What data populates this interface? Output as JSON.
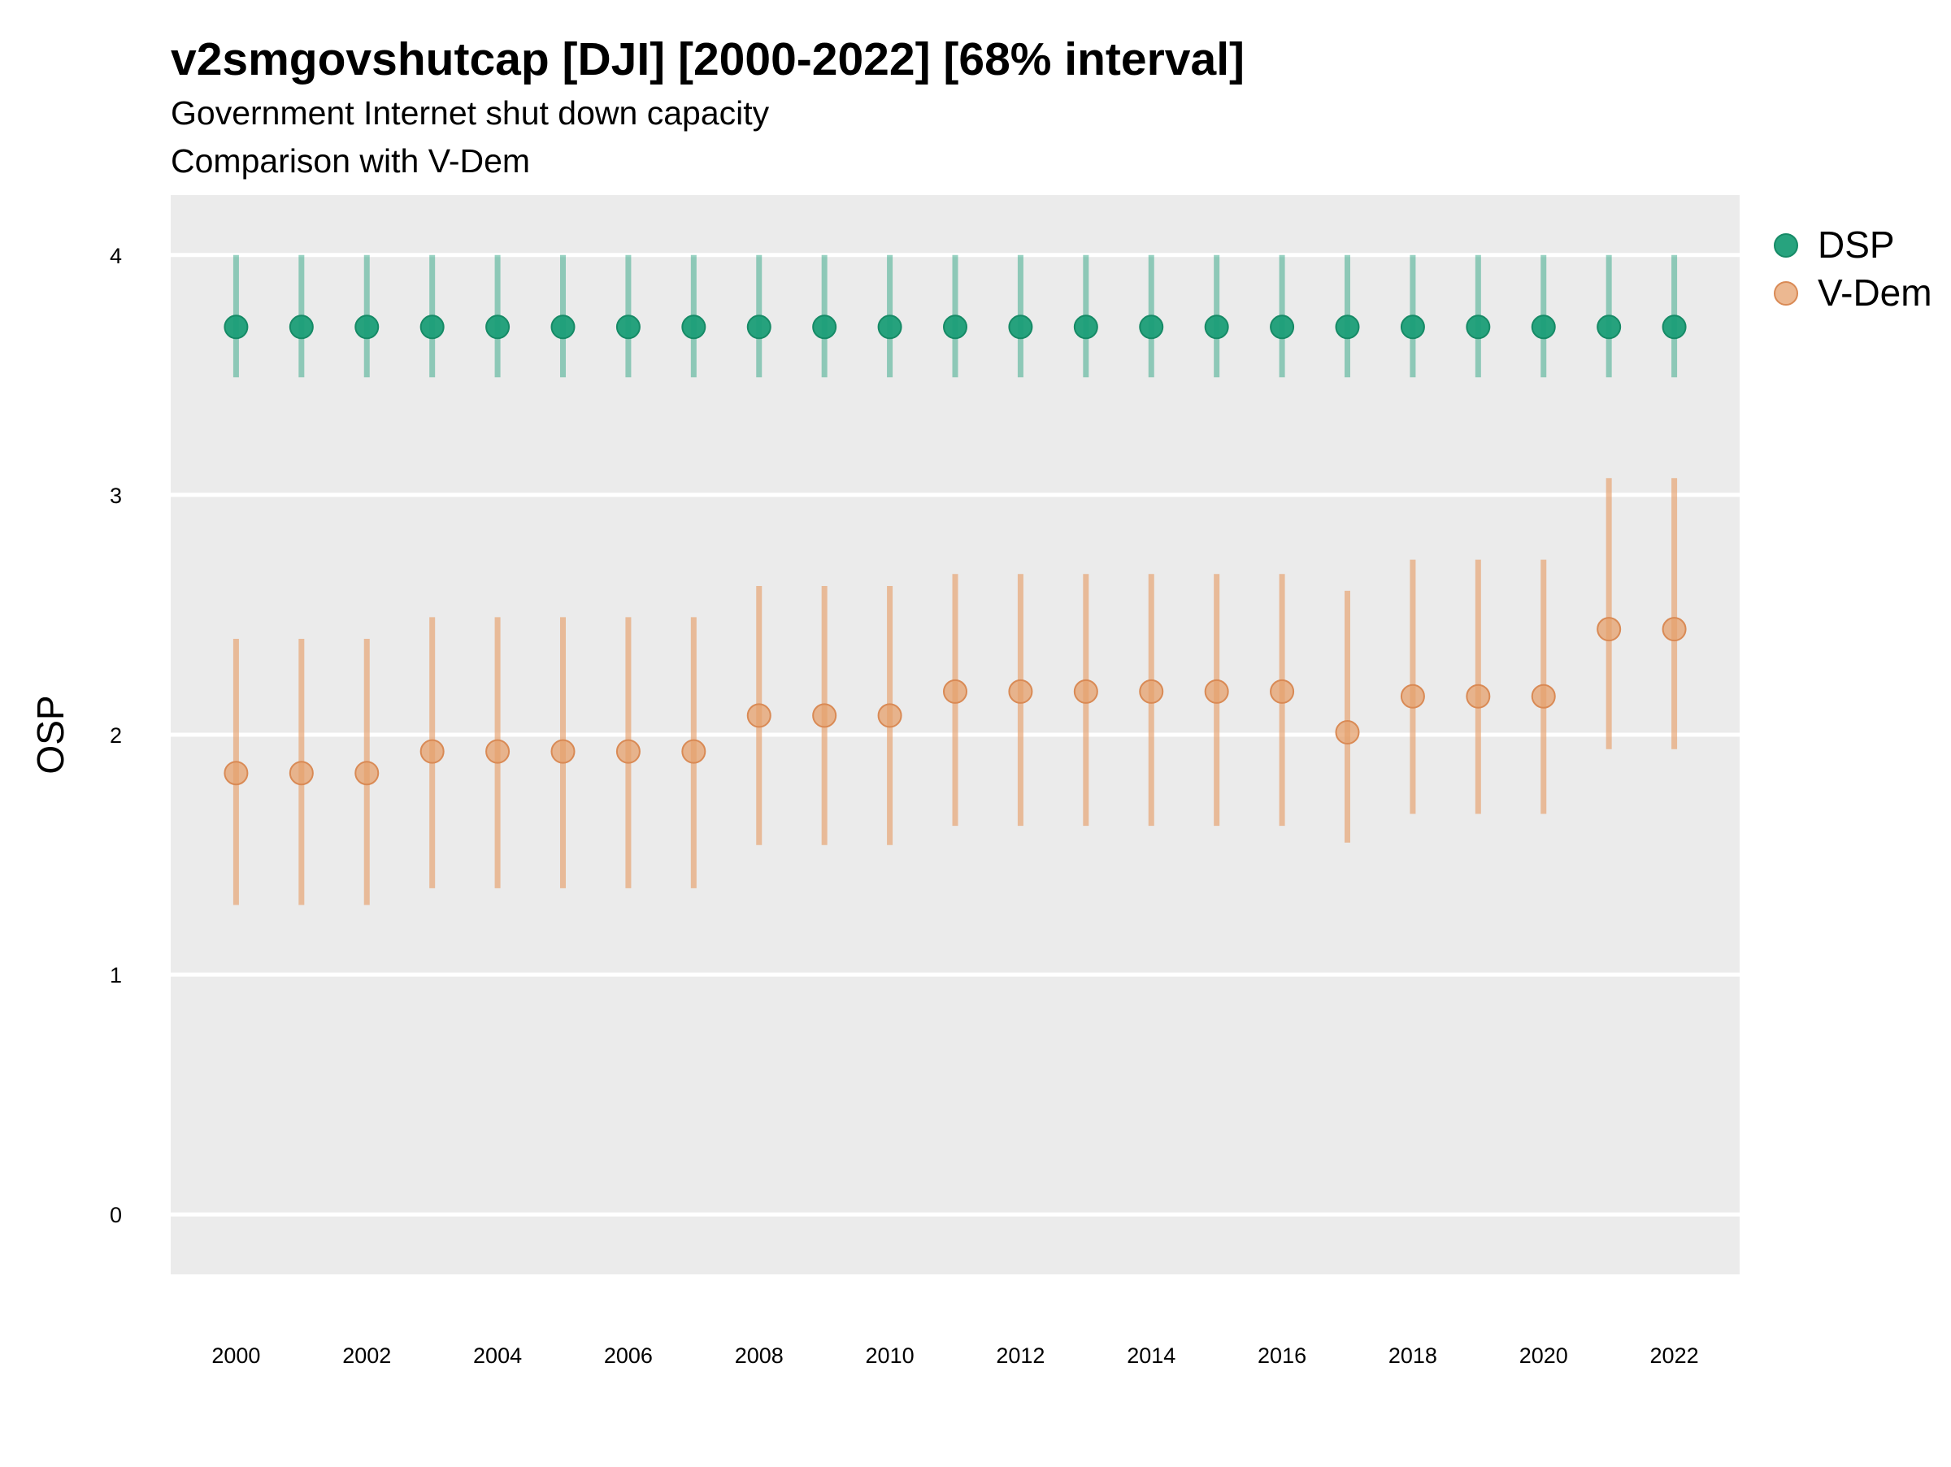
{
  "chart_data": {
    "type": "scatter",
    "title": "v2smgovshutcap [DJI] [2000-2022] [68% interval]",
    "subtitle_lines": [
      "Government Internet shut down capacity",
      "Comparison with V-Dem"
    ],
    "xlabel": "",
    "ylabel": "OSP",
    "xlim": [
      1999.0,
      2023.0
    ],
    "ylim": [
      -0.25,
      4.25
    ],
    "x_ticks": [
      2000,
      2002,
      2004,
      2006,
      2008,
      2010,
      2012,
      2014,
      2016,
      2018,
      2020,
      2022
    ],
    "y_ticks": [
      0,
      1,
      2,
      3,
      4
    ],
    "grid": "horizontal",
    "legend_position": "right-top",
    "x": [
      2000,
      2001,
      2002,
      2003,
      2004,
      2005,
      2006,
      2007,
      2008,
      2009,
      2010,
      2011,
      2012,
      2013,
      2014,
      2015,
      2016,
      2017,
      2018,
      2019,
      2020,
      2021,
      2022
    ],
    "series": [
      {
        "name": "DSP",
        "color": "#1b9e77",
        "values": [
          3.7,
          3.7,
          3.7,
          3.7,
          3.7,
          3.7,
          3.7,
          3.7,
          3.7,
          3.7,
          3.7,
          3.7,
          3.7,
          3.7,
          3.7,
          3.7,
          3.7,
          3.7,
          3.7,
          3.7,
          3.7,
          3.7,
          3.7
        ],
        "lower": [
          3.49,
          3.49,
          3.49,
          3.49,
          3.49,
          3.49,
          3.49,
          3.49,
          3.49,
          3.49,
          3.49,
          3.49,
          3.49,
          3.49,
          3.49,
          3.49,
          3.49,
          3.49,
          3.49,
          3.49,
          3.49,
          3.49,
          3.49
        ],
        "upper": [
          4.0,
          4.0,
          4.0,
          4.0,
          4.0,
          4.0,
          4.0,
          4.0,
          4.0,
          4.0,
          4.0,
          4.0,
          4.0,
          4.0,
          4.0,
          4.0,
          4.0,
          4.0,
          4.0,
          4.0,
          4.0,
          4.0,
          4.0
        ]
      },
      {
        "name": "V-Dem",
        "color": "#e6a06c",
        "values": [
          1.84,
          1.84,
          1.84,
          1.93,
          1.93,
          1.93,
          1.93,
          1.93,
          2.08,
          2.08,
          2.08,
          2.18,
          2.18,
          2.18,
          2.18,
          2.18,
          2.18,
          2.01,
          2.16,
          2.16,
          2.16,
          2.44,
          2.44
        ],
        "lower": [
          1.29,
          1.29,
          1.29,
          1.36,
          1.36,
          1.36,
          1.36,
          1.36,
          1.54,
          1.54,
          1.54,
          1.62,
          1.62,
          1.62,
          1.62,
          1.62,
          1.62,
          1.55,
          1.67,
          1.67,
          1.67,
          1.94,
          1.94
        ],
        "upper": [
          2.4,
          2.4,
          2.4,
          2.49,
          2.49,
          2.49,
          2.49,
          2.49,
          2.62,
          2.62,
          2.62,
          2.67,
          2.67,
          2.67,
          2.67,
          2.67,
          2.67,
          2.6,
          2.73,
          2.73,
          2.73,
          3.07,
          3.07
        ]
      }
    ]
  }
}
